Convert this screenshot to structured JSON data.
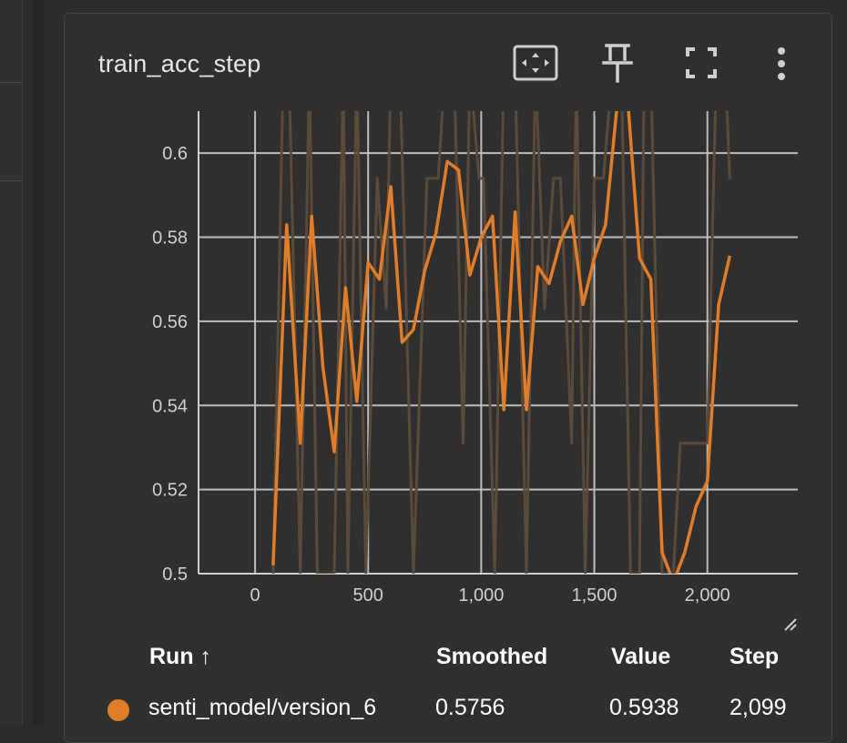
{
  "card": {
    "title": "train_acc_step",
    "icons": [
      "fit-domain-icon",
      "pin-icon",
      "fullscreen-icon",
      "more-vert-icon"
    ]
  },
  "chart_data": {
    "type": "line",
    "title": "train_acc_step",
    "xlabel": "",
    "ylabel": "",
    "xlim": [
      -250,
      2400
    ],
    "ylim": [
      0.5,
      0.61
    ],
    "x_ticks": [
      0,
      500,
      1000,
      1500,
      2000
    ],
    "x_tick_labels": [
      "0",
      "500",
      "1,000",
      "1,500",
      "2,000"
    ],
    "y_ticks": [
      0.5,
      0.52,
      0.54,
      0.56,
      0.58,
      0.6
    ],
    "y_tick_labels": [
      "0.5",
      "0.52",
      "0.54",
      "0.56",
      "0.58",
      "0.6"
    ],
    "grid": true,
    "series": [
      {
        "name": "senti_model/version_6",
        "role": "smoothed",
        "color": "#e17d29",
        "x": [
          80,
          140,
          200,
          250,
          300,
          350,
          400,
          450,
          500,
          550,
          600,
          650,
          700,
          750,
          800,
          850,
          900,
          950,
          1000,
          1050,
          1100,
          1150,
          1200,
          1250,
          1300,
          1350,
          1400,
          1450,
          1500,
          1550,
          1600,
          1650,
          1700,
          1750,
          1800,
          1850,
          1900,
          1950,
          2000,
          2050,
          2099
        ],
        "y": [
          0.502,
          0.583,
          0.531,
          0.585,
          0.549,
          0.529,
          0.568,
          0.541,
          0.574,
          0.57,
          0.592,
          0.555,
          0.558,
          0.572,
          0.581,
          0.598,
          0.596,
          0.571,
          0.58,
          0.585,
          0.539,
          0.586,
          0.539,
          0.573,
          0.569,
          0.579,
          0.585,
          0.564,
          0.575,
          0.583,
          0.611,
          0.611,
          0.575,
          0.57,
          0.505,
          0.498,
          0.505,
          0.516,
          0.522,
          0.564,
          0.5756
        ]
      },
      {
        "name": "senti_model/version_6",
        "role": "raw",
        "color": "#5a4a3a",
        "x": [
          80,
          125,
          150,
          200,
          240,
          275,
          300,
          350,
          390,
          410,
          450,
          490,
          540,
          580,
          600,
          640,
          700,
          760,
          810,
          840,
          880,
          920,
          950,
          990,
          1010,
          1060,
          1100,
          1150,
          1200,
          1240,
          1280,
          1320,
          1350,
          1400,
          1420,
          1460,
          1500,
          1540,
          1580,
          1620,
          1660,
          1700,
          1720,
          1750,
          1800,
          1850,
          1880,
          1920,
          1960,
          2000,
          2040,
          2080,
          2099
        ],
        "y": [
          0.5,
          0.62,
          0.62,
          0.5,
          0.62,
          0.5,
          0.5,
          0.5,
          0.62,
          0.5,
          0.62,
          0.5,
          0.594,
          0.563,
          0.62,
          0.62,
          0.5,
          0.594,
          0.594,
          0.62,
          0.62,
          0.531,
          0.62,
          0.594,
          0.594,
          0.5,
          0.62,
          0.62,
          0.5,
          0.62,
          0.563,
          0.594,
          0.594,
          0.531,
          0.62,
          0.5,
          0.594,
          0.594,
          0.62,
          0.62,
          0.5,
          0.5,
          0.62,
          0.62,
          0.5,
          0.5,
          0.531,
          0.531,
          0.531,
          0.531,
          0.62,
          0.62,
          0.5938
        ]
      }
    ]
  },
  "legend": {
    "headers": {
      "run": "Run ↑",
      "smoothed": "Smoothed",
      "value": "Value",
      "step": "Step"
    },
    "rows": [
      {
        "run": "senti_model/version_6",
        "color": "#e17d29",
        "smoothed": "0.5756",
        "value": "0.5938",
        "step": "2,099"
      }
    ]
  }
}
